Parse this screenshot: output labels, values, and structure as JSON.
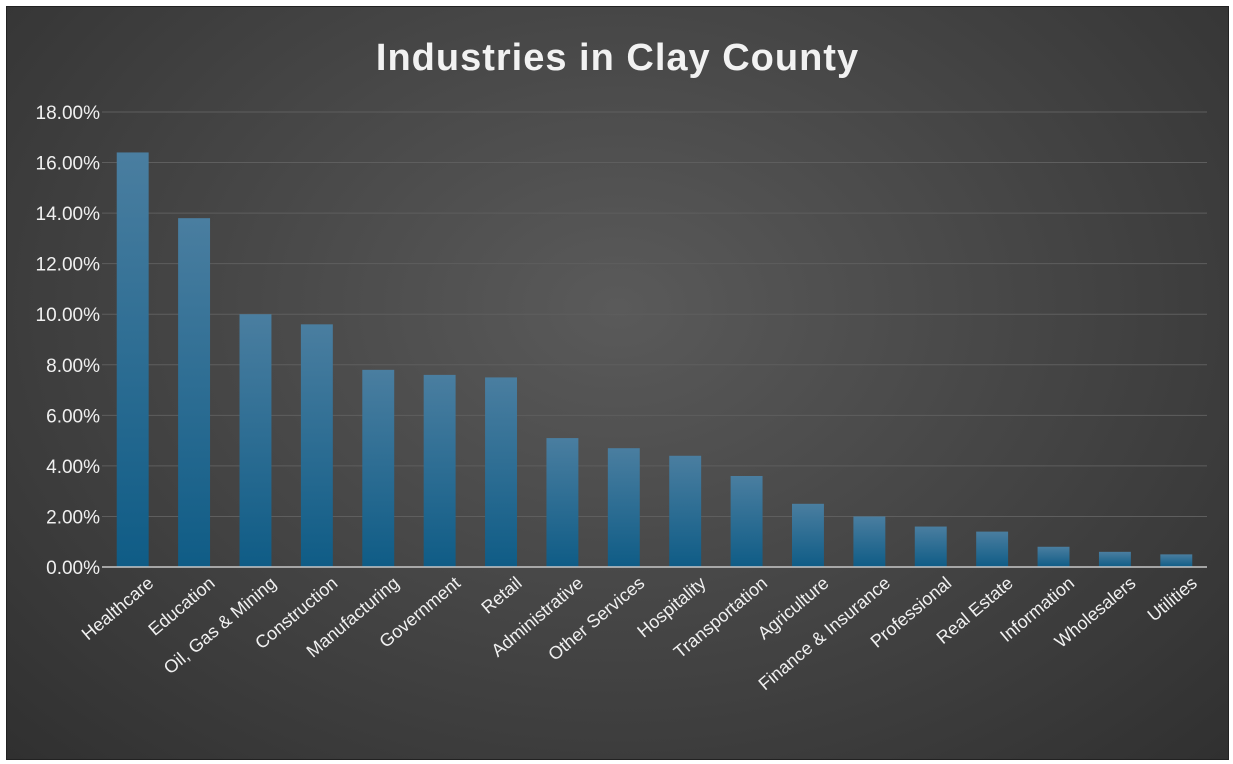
{
  "chart_data": {
    "type": "bar",
    "title": "Industries in Clay County",
    "xlabel": "",
    "ylabel": "",
    "ylim": [
      0,
      18
    ],
    "y_ticks": [
      "0.00%",
      "2.00%",
      "4.00%",
      "6.00%",
      "8.00%",
      "10.00%",
      "12.00%",
      "14.00%",
      "16.00%",
      "18.00%"
    ],
    "y_unit": "%",
    "grid": true,
    "legend": "none",
    "categories": [
      "Healthcare",
      "Education",
      "Oil, Gas & Mining",
      "Construction",
      "Manufacturing",
      "Government",
      "Retail",
      "Administrative",
      "Other Services",
      "Hospitality",
      "Transportation",
      "Agriculture",
      "Finance & Insurance",
      "Professional",
      "Real Estate",
      "Information",
      "Wholesalers",
      "Utilities"
    ],
    "values": [
      16.4,
      13.8,
      10.0,
      9.6,
      7.8,
      7.6,
      7.5,
      5.1,
      4.7,
      4.4,
      3.6,
      2.5,
      2.0,
      1.6,
      1.4,
      0.8,
      0.6,
      0.5
    ],
    "colors": {
      "bar_top": "#4a7ea0",
      "bar_bottom": "#0f5c86",
      "grid": "#5e5e5e",
      "axis": "#c8c8c8"
    }
  }
}
